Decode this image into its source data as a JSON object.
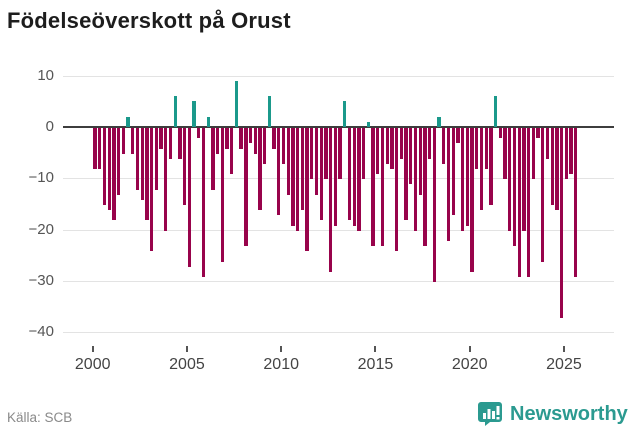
{
  "title": "Födelseöverskott på Orust",
  "source_label": "Källa: SCB",
  "brand": {
    "name": "Newsworthy",
    "color": "#2b9a90"
  },
  "chart_data": {
    "type": "bar",
    "title": "Födelseöverskott på Orust",
    "xlabel": "",
    "ylabel": "",
    "frequency": "quarterly",
    "start_year": 2000,
    "start_quarter": 1,
    "grid": true,
    "legend": "none",
    "ylim": [
      -40,
      12
    ],
    "y_ticks": [
      10,
      0,
      -10,
      -20,
      -30,
      -40
    ],
    "y_tick_labels": [
      "10",
      "0",
      "−10",
      "−20",
      "−30",
      "−40"
    ],
    "x_tick_years": [
      2000,
      2005,
      2010,
      2015,
      2020,
      2025
    ],
    "x_tick_labels": [
      "2000",
      "2005",
      "2010",
      "2015",
      "2020",
      "2025"
    ],
    "colors": {
      "negative": "#98034b",
      "positive": "#1b998b"
    },
    "series": [
      {
        "name": "Födelseöverskott",
        "values": [
          -8,
          -8,
          -15,
          -16,
          -18,
          -13,
          -5,
          2,
          -5,
          -12,
          -14,
          -18,
          -24,
          -12,
          -4,
          -20,
          -6,
          6,
          -6,
          -15,
          -27,
          5,
          -2,
          -29,
          2,
          -12,
          -5,
          -26,
          -4,
          -9,
          9,
          -4,
          -23,
          -3,
          -5,
          -16,
          -7,
          6,
          -4,
          -17,
          -7,
          -13,
          -19,
          -20,
          -16,
          -24,
          -10,
          -13,
          -18,
          -10,
          -28,
          -19,
          -10,
          5,
          -18,
          -19,
          -20,
          -10,
          1,
          -23,
          -9,
          -23,
          -7,
          -8,
          -24,
          -6,
          -18,
          -11,
          -20,
          -13,
          -23,
          -6,
          -30,
          2,
          -7,
          -22,
          -17,
          -3,
          -20,
          -19,
          -28,
          -8,
          -16,
          -8,
          -15,
          6,
          -2,
          -10,
          -20,
          -23,
          -29,
          -20,
          -29,
          -10,
          -2,
          -26,
          -6,
          -15,
          -16,
          -37,
          -10,
          -9,
          -29
        ]
      }
    ]
  }
}
